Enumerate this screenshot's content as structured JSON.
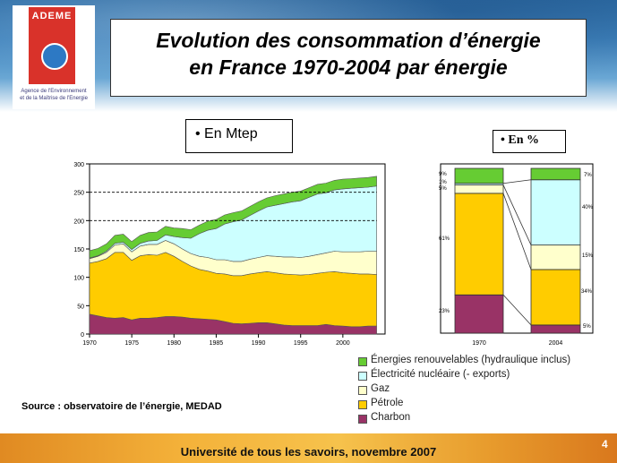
{
  "logo": {
    "name": "ADEME",
    "subtitle": "Agence de l'Environnement\net de la Maîtrise de l'Energie"
  },
  "title": {
    "line1": "Evolution des consommation d’énergie",
    "line2": "en France 1970-2004 par énergie"
  },
  "unit_labels": {
    "mtep": "•   En Mtep",
    "percent": "•   En %"
  },
  "source": "Source : observatoire de l’énergie, MEDAD",
  "footer": {
    "text": "Université de tous les savoirs, novembre 2007",
    "page": "4"
  },
  "colors": {
    "charbon": "#993366",
    "petrole": "#ffcc00",
    "gaz": "#ffffcc",
    "electricite": "#ccffff",
    "renouvelables": "#66cc33"
  },
  "legend": [
    {
      "key": "renouvelables",
      "label": "Énergies renouvelables (hydraulique inclus)"
    },
    {
      "key": "electricite",
      "label": "Électricité nucléaire (- exports)"
    },
    {
      "key": "gaz",
      "label": "Gaz"
    },
    {
      "key": "petrole",
      "label": "Pétrole"
    },
    {
      "key": "charbon",
      "label": "Charbon"
    }
  ],
  "chart_data": [
    {
      "type": "area",
      "stacked": true,
      "x": [
        1970,
        1971,
        1972,
        1973,
        1974,
        1975,
        1976,
        1977,
        1978,
        1979,
        1980,
        1981,
        1982,
        1983,
        1984,
        1985,
        1986,
        1987,
        1988,
        1989,
        1990,
        1991,
        1992,
        1993,
        1994,
        1995,
        1996,
        1997,
        1998,
        1999,
        2000,
        2001,
        2002,
        2003,
        2004
      ],
      "series": [
        {
          "name": "Charbon",
          "key": "charbon",
          "values": [
            35,
            32,
            29,
            28,
            29,
            25,
            28,
            28,
            29,
            31,
            31,
            30,
            28,
            27,
            26,
            25,
            22,
            19,
            18,
            19,
            20,
            20,
            18,
            16,
            15,
            15,
            15,
            15,
            17,
            15,
            14,
            13,
            13,
            14,
            14
          ]
        },
        {
          "name": "Pétrole",
          "key": "petrole",
          "values": [
            90,
            96,
            104,
            116,
            115,
            105,
            110,
            112,
            110,
            113,
            106,
            98,
            92,
            87,
            85,
            82,
            84,
            84,
            85,
            87,
            88,
            90,
            90,
            90,
            90,
            89,
            90,
            92,
            92,
            95,
            94,
            94,
            93,
            92,
            91
          ]
        },
        {
          "name": "Gaz",
          "key": "gaz",
          "values": [
            8,
            9,
            11,
            13,
            15,
            15,
            17,
            18,
            19,
            21,
            22,
            22,
            22,
            23,
            24,
            24,
            25,
            25,
            25,
            26,
            27,
            28,
            29,
            30,
            31,
            31,
            32,
            33,
            34,
            36,
            37,
            38,
            39,
            40,
            41
          ]
        },
        {
          "name": "Électricité nucléaire (- exports)",
          "key": "electricite",
          "values": [
            1,
            1,
            2,
            3,
            3,
            4,
            5,
            6,
            7,
            10,
            13,
            20,
            27,
            40,
            48,
            55,
            63,
            70,
            73,
            77,
            82,
            86,
            90,
            94,
            97,
            100,
            104,
            107,
            106,
            108,
            111,
            112,
            113,
            113,
            115
          ]
        },
        {
          "name": "Énergies renouvelables (hydraulique inclus)",
          "key": "renouvelables",
          "values": [
            13,
            13,
            13,
            14,
            14,
            14,
            14,
            15,
            15,
            15,
            15,
            16,
            15,
            15,
            16,
            16,
            16,
            16,
            16,
            16,
            16,
            16,
            17,
            17,
            17,
            17,
            17,
            17,
            17,
            17,
            17,
            17,
            17,
            17,
            17
          ]
        }
      ],
      "xticks": [
        "1970",
        "1975",
        "1980",
        "1985",
        "1990",
        "1995",
        "2000"
      ],
      "ylim": [
        0,
        300
      ],
      "yticks": [
        "0",
        "50",
        "100",
        "150",
        "200",
        "250",
        "300"
      ],
      "reference_lines": [
        200,
        250
      ],
      "xlabel": "",
      "ylabel": ""
    },
    {
      "type": "bar",
      "stacked": true,
      "normalized": true,
      "categories": [
        "1970",
        "2004"
      ],
      "series": [
        {
          "name": "Charbon",
          "key": "charbon",
          "values": [
            23,
            5
          ]
        },
        {
          "name": "Pétrole",
          "key": "petrole",
          "values": [
            61,
            34
          ]
        },
        {
          "name": "Gaz",
          "key": "gaz",
          "values": [
            5,
            15
          ]
        },
        {
          "name": "Électricité nucléaire (- exports)",
          "key": "electricite",
          "values": [
            1,
            40
          ]
        },
        {
          "name": "Énergies renouvelables (hydraulique inclus)",
          "key": "renouvelables",
          "values": [
            9,
            7
          ]
        }
      ],
      "labels_1970": [
        "23%",
        "61%",
        "5%",
        "1%",
        "9%"
      ],
      "labels_2004": [
        "5%",
        "34%",
        "15%",
        "40%",
        "7%"
      ]
    }
  ]
}
